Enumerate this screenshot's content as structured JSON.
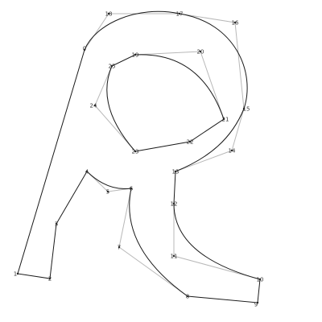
{
  "colors": {
    "outline": "#1a1a1a",
    "control_lines": "#b8b8b8",
    "labels": "#333333",
    "background": "#ffffff"
  },
  "glyph": {
    "points": [
      {
        "id": "0",
        "label": "0"
      },
      {
        "id": "1",
        "label": "1"
      },
      {
        "id": "2",
        "label": "2"
      },
      {
        "id": "3",
        "label": "3"
      },
      {
        "id": "4",
        "label": "4"
      },
      {
        "id": "5",
        "label": "5"
      },
      {
        "id": "6",
        "label": "6"
      },
      {
        "id": "7",
        "label": "7"
      },
      {
        "id": "8",
        "label": "8"
      },
      {
        "id": "9",
        "label": "9"
      },
      {
        "id": "10",
        "label": "10"
      },
      {
        "id": "11",
        "label": "11"
      },
      {
        "id": "12",
        "label": "12"
      },
      {
        "id": "13",
        "label": "13"
      },
      {
        "id": "14",
        "label": "14"
      },
      {
        "id": "15",
        "label": "15"
      },
      {
        "id": "16",
        "label": "16"
      },
      {
        "id": "17",
        "label": "17"
      },
      {
        "id": "18",
        "label": "18"
      },
      {
        "id": "19",
        "label": "19"
      },
      {
        "id": "20",
        "label": "20"
      },
      {
        "id": "21",
        "label": "21"
      },
      {
        "id": "22",
        "label": "22"
      },
      {
        "id": "23",
        "label": "23"
      },
      {
        "id": "24",
        "label": "24"
      },
      {
        "id": "25",
        "label": "25"
      }
    ]
  }
}
